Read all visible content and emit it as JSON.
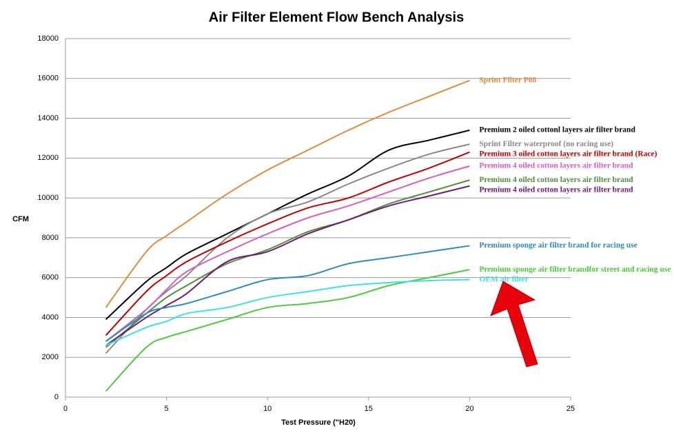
{
  "chart_data": {
    "type": "line",
    "title": "Air Filter Element Flow Bench Analysis",
    "x_label": "Test Pressure (\"H20)",
    "y_label": "CFM",
    "x": [
      2,
      4,
      5,
      6,
      8,
      10,
      12,
      14,
      16,
      18,
      20
    ],
    "xlim": [
      0,
      25
    ],
    "xticks": [
      0,
      5,
      10,
      15,
      20,
      25
    ],
    "ylim": [
      0,
      18000
    ],
    "yticks": [
      0,
      2000,
      4000,
      6000,
      8000,
      10000,
      12000,
      14000,
      16000,
      18000
    ],
    "grid": true,
    "series": [
      {
        "name": "Sprint Filter P08",
        "color": "#e08a3c",
        "values": [
          4500,
          7300,
          8100,
          8800,
          10200,
          11400,
          12400,
          13400,
          14300,
          15100,
          15900
        ]
      },
      {
        "name": "Premium 2 oiled cottonl layers  air filter brand",
        "color": "#000000",
        "values": [
          3900,
          5800,
          6500,
          7200,
          8200,
          9200,
          10200,
          11100,
          12400,
          12900,
          13400
        ]
      },
      {
        "name": "Sprint Filter waterproof (no racing use)",
        "color": "#888888",
        "values": [
          2200,
          4400,
          5300,
          6100,
          8000,
          9200,
          9800,
          10700,
          11500,
          12200,
          12700
        ]
      },
      {
        "name": "Premium 3 oiled cotton layers air filter brand (Race)",
        "color": "#c00000",
        "values": [
          3100,
          5300,
          6100,
          6800,
          7800,
          8700,
          9500,
          10000,
          10800,
          11500,
          12300
        ]
      },
      {
        "name": "Premium 4  oiled cotton layers air filter brand",
        "color": "#d45fc0",
        "values": [
          2800,
          4400,
          5400,
          6300,
          7300,
          8200,
          9000,
          9600,
          10300,
          11000,
          11600
        ]
      },
      {
        "name": "Premium 4  oiled cotton layers air filter brand",
        "color": "#4f8f38",
        "values": [
          2500,
          4200,
          5000,
          5600,
          6700,
          7400,
          8300,
          8900,
          9700,
          10300,
          10900
        ]
      },
      {
        "name": "Premium 4 oiled cotton layers air filter brand",
        "color": "#6e1a70",
        "values": [
          2600,
          4000,
          4600,
          5200,
          6800,
          7300,
          8200,
          8900,
          9600,
          10100,
          10600
        ]
      },
      {
        "name": "Premium sponge air filter brand for racing use",
        "color": "#2e8bc0",
        "values": [
          2800,
          4200,
          4500,
          4700,
          5300,
          5900,
          6100,
          6700,
          7000,
          7300,
          7600
        ]
      },
      {
        "name": "Premium sponge air filter brandfor street and racing use",
        "color": "#4cc93a",
        "values": [
          300,
          2500,
          3000,
          3300,
          3900,
          4500,
          4700,
          5000,
          5600,
          6000,
          6400
        ]
      },
      {
        "name": "OEM air filter",
        "color": "#3ce0e8",
        "values": [
          2600,
          3500,
          3800,
          4200,
          4500,
          5000,
          5300,
          5600,
          5750,
          5850,
          5900
        ]
      }
    ]
  }
}
